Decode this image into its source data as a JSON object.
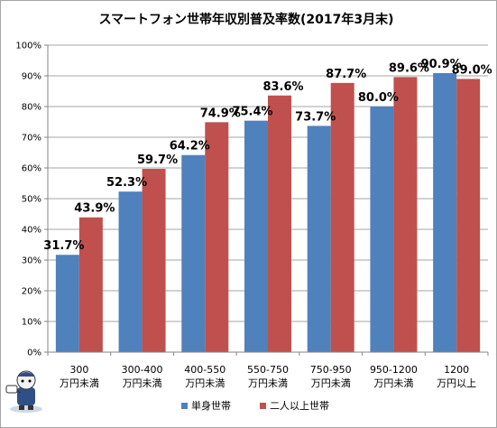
{
  "chart_data": {
    "type": "bar",
    "title": "スマートフォン世帯年収別普及率数(2017年3月末)",
    "categories": [
      [
        "300",
        "万円未満"
      ],
      [
        "300-400",
        "万円未満"
      ],
      [
        "400-550",
        "万円未満"
      ],
      [
        "550-750",
        "万円未満"
      ],
      [
        "750-950",
        "万円未満"
      ],
      [
        "950-1200",
        "万円未満"
      ],
      [
        "1200",
        "万円以上"
      ]
    ],
    "series": [
      {
        "name": "単身世帯",
        "color": "#4f81bd",
        "values": [
          31.7,
          52.3,
          64.2,
          75.4,
          73.7,
          80.0,
          90.9
        ]
      },
      {
        "name": "二人以上世帯",
        "color": "#c0504d",
        "values": [
          43.9,
          59.7,
          74.9,
          83.6,
          87.7,
          89.6,
          89.0
        ]
      }
    ],
    "ylim": [
      0,
      100
    ],
    "yticks": [
      "0%",
      "10%",
      "20%",
      "30%",
      "40%",
      "50%",
      "60%",
      "70%",
      "80%",
      "90%",
      "100%"
    ],
    "grid": true,
    "legend": "bottom",
    "value_format": "%"
  }
}
